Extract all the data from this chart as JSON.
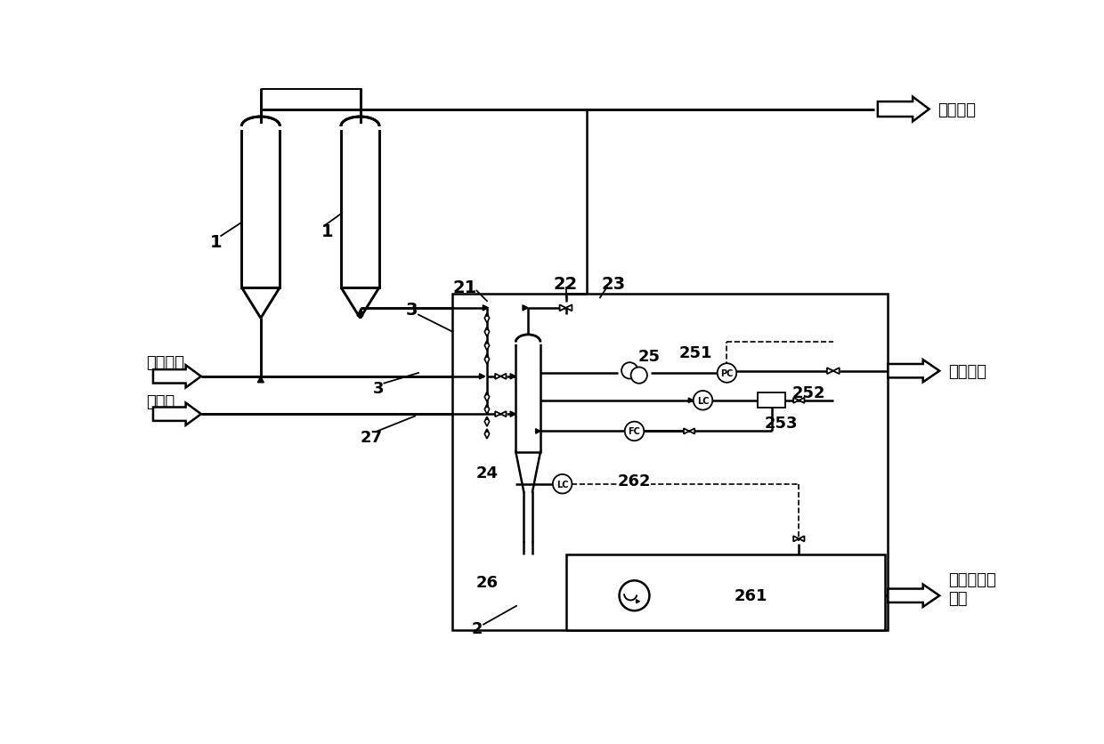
{
  "bg_color": "#ffffff",
  "lw": 1.8,
  "lw_thick": 2.2,
  "labels": {
    "1a": "1",
    "1b": "1",
    "3a": "3",
    "3b": "3",
    "21": "21",
    "22": "22",
    "23": "23",
    "24": "24",
    "25": "25",
    "26": "26",
    "27": "27",
    "251": "251",
    "252": "252",
    "253": "253",
    "261": "261",
    "262": "262",
    "2": "2",
    "reaction_product": "反应产物",
    "reaction_feed": "反应进料",
    "flush_oil": "冲洗油",
    "flare_system": "火炬系统",
    "raw_oil_recycle": "原料油回炼\n系统"
  },
  "fs": 13,
  "fs_label": 14
}
